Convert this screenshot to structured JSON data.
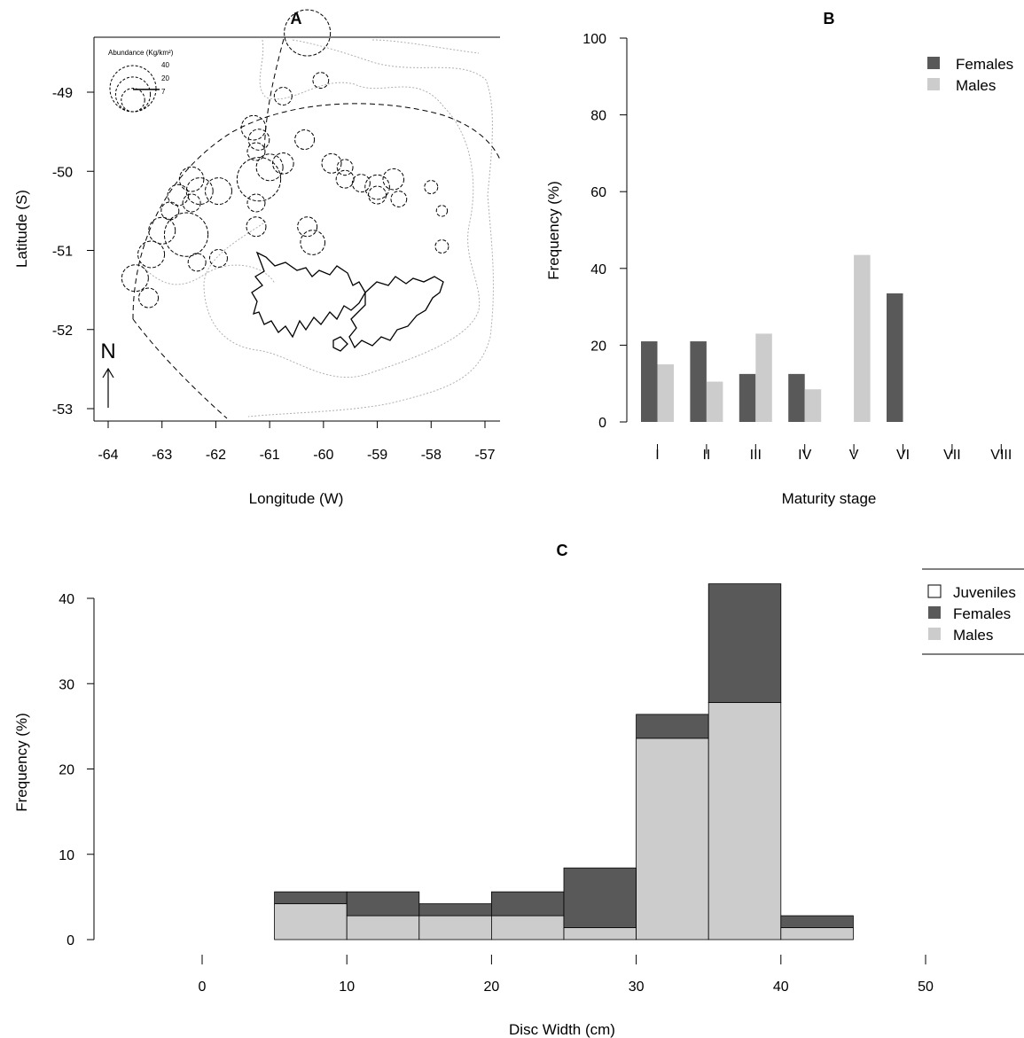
{
  "chart_data": [
    {
      "panel": "A",
      "type": "scatter",
      "title": "A",
      "xlabel": "Longitude (W)",
      "ylabel": "Latitude (S)",
      "xlim": [
        -64.3,
        -56.8
      ],
      "ylim": [
        -53.15,
        -48.0
      ],
      "xticks": [
        -64,
        -63,
        -62,
        -61,
        -60,
        -59,
        -58,
        -57
      ],
      "yticks": [
        -49,
        -50,
        -51,
        -52,
        -53
      ],
      "north_label": "N",
      "legend": {
        "title": "Abundance (Kg/km²)",
        "entries": [
          "40",
          "20",
          "7"
        ],
        "values": [
          40,
          20,
          7
        ]
      },
      "points": [
        {
          "lon": -60.3,
          "lat": -48.25,
          "abundance": 40
        },
        {
          "lon": -60.05,
          "lat": -48.85,
          "abundance": 2
        },
        {
          "lon": -60.75,
          "lat": -49.05,
          "abundance": 3
        },
        {
          "lon": -61.3,
          "lat": -49.45,
          "abundance": 8
        },
        {
          "lon": -61.2,
          "lat": -49.6,
          "abundance": 5
        },
        {
          "lon": -61.25,
          "lat": -49.75,
          "abundance": 3
        },
        {
          "lon": -60.35,
          "lat": -49.6,
          "abundance": 4
        },
        {
          "lon": -61.0,
          "lat": -49.95,
          "abundance": 10
        },
        {
          "lon": -60.75,
          "lat": -49.9,
          "abundance": 5
        },
        {
          "lon": -61.2,
          "lat": -50.1,
          "abundance": 35
        },
        {
          "lon": -61.25,
          "lat": -50.4,
          "abundance": 3
        },
        {
          "lon": -61.25,
          "lat": -50.7,
          "abundance": 4
        },
        {
          "lon": -62.45,
          "lat": -50.1,
          "abundance": 8
        },
        {
          "lon": -62.3,
          "lat": -50.25,
          "abundance": 10
        },
        {
          "lon": -61.95,
          "lat": -50.25,
          "abundance": 10
        },
        {
          "lon": -62.7,
          "lat": -50.3,
          "abundance": 5
        },
        {
          "lon": -62.45,
          "lat": -50.4,
          "abundance": 3
        },
        {
          "lon": -62.85,
          "lat": -50.5,
          "abundance": 3
        },
        {
          "lon": -62.55,
          "lat": -50.8,
          "abundance": 35
        },
        {
          "lon": -63.0,
          "lat": -50.75,
          "abundance": 10
        },
        {
          "lon": -63.2,
          "lat": -51.05,
          "abundance": 10
        },
        {
          "lon": -62.35,
          "lat": -51.15,
          "abundance": 3
        },
        {
          "lon": -61.95,
          "lat": -51.1,
          "abundance": 3
        },
        {
          "lon": -63.5,
          "lat": -51.35,
          "abundance": 10
        },
        {
          "lon": -63.25,
          "lat": -51.6,
          "abundance": 4
        },
        {
          "lon": -59.85,
          "lat": -49.9,
          "abundance": 4
        },
        {
          "lon": -59.6,
          "lat": -49.95,
          "abundance": 2
        },
        {
          "lon": -59.6,
          "lat": -50.1,
          "abundance": 3
        },
        {
          "lon": -59.3,
          "lat": -50.15,
          "abundance": 3
        },
        {
          "lon": -59.0,
          "lat": -50.2,
          "abundance": 8
        },
        {
          "lon": -58.7,
          "lat": -50.1,
          "abundance": 5
        },
        {
          "lon": -59.0,
          "lat": -50.3,
          "abundance": 3
        },
        {
          "lon": -58.6,
          "lat": -50.35,
          "abundance": 2
        },
        {
          "lon": -60.3,
          "lat": -50.7,
          "abundance": 4
        },
        {
          "lon": -60.2,
          "lat": -50.9,
          "abundance": 8
        },
        {
          "lon": -58.0,
          "lat": -50.2,
          "abundance": 1
        },
        {
          "lon": -57.8,
          "lat": -50.5,
          "abundance": 0.4
        },
        {
          "lon": -57.8,
          "lat": -50.95,
          "abundance": 1
        }
      ]
    },
    {
      "panel": "B",
      "type": "bar",
      "title": "B",
      "xlabel": "Maturity stage",
      "ylabel": "Frequency (%)",
      "ylim": [
        0,
        100
      ],
      "yticks": [
        0,
        20,
        40,
        60,
        80,
        100
      ],
      "categories": [
        "I",
        "II",
        "III",
        "IV",
        "V",
        "VI",
        "VII",
        "VIII"
      ],
      "legend_position": "top-right",
      "series": [
        {
          "name": "Females",
          "color": "#595959",
          "values": [
            21,
            21,
            12.5,
            12.5,
            0,
            33.5,
            0,
            0
          ]
        },
        {
          "name": "Males",
          "color": "#cccccc",
          "values": [
            15,
            10.5,
            23,
            8.5,
            43.5,
            0,
            0,
            0
          ]
        }
      ]
    },
    {
      "panel": "C",
      "type": "bar",
      "subtype": "stacked-histogram",
      "title": "C",
      "xlabel": "Disc Width (cm)",
      "ylabel": "Frequency (%)",
      "xlim": [
        -7.5,
        55
      ],
      "ylim": [
        0,
        42
      ],
      "xticks": [
        0,
        10,
        20,
        30,
        40,
        50
      ],
      "yticks": [
        0,
        10,
        20,
        30,
        40
      ],
      "bins": [
        [
          5,
          10
        ],
        [
          10,
          15
        ],
        [
          15,
          20
        ],
        [
          20,
          25
        ],
        [
          25,
          30
        ],
        [
          30,
          35
        ],
        [
          35,
          40
        ],
        [
          40,
          45
        ]
      ],
      "legend_position": "top-right",
      "series": [
        {
          "name": "Juveniles",
          "color": "#ffffff",
          "values": [
            0,
            0,
            0,
            0,
            0,
            0,
            0,
            0
          ]
        },
        {
          "name": "Females",
          "color": "#595959",
          "values": [
            1.4,
            2.8,
            1.4,
            2.8,
            7.0,
            2.8,
            13.9,
            1.4
          ]
        },
        {
          "name": "Males",
          "color": "#cccccc",
          "values": [
            4.2,
            2.8,
            2.8,
            2.8,
            1.4,
            23.6,
            27.8,
            1.4
          ]
        }
      ]
    }
  ]
}
